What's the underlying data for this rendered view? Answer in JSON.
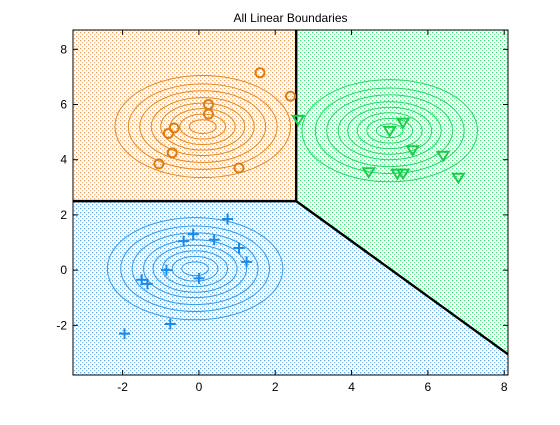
{
  "chart_data": {
    "type": "scatter",
    "title": "All Linear Boundaries",
    "xlabel": "",
    "ylabel": "",
    "xlim": [
      -3.3,
      8.1
    ],
    "ylim": [
      -3.8,
      8.7
    ],
    "xticks": [
      -2,
      0,
      2,
      4,
      6,
      8
    ],
    "yticks": [
      -2,
      0,
      2,
      4,
      6,
      8
    ],
    "grid": false,
    "legend": "none",
    "regions": [
      {
        "class": "orange",
        "color": "#e8a25a",
        "polygon": [
          [
            -3.3,
            2.5
          ],
          [
            2.55,
            2.5
          ],
          [
            2.55,
            8.7
          ],
          [
            -3.3,
            8.7
          ]
        ]
      },
      {
        "class": "green",
        "color": "#3ee07a",
        "polygon": [
          [
            2.55,
            8.7
          ],
          [
            2.55,
            2.5
          ],
          [
            8.1,
            -3.05
          ],
          [
            8.1,
            8.7
          ]
        ]
      },
      {
        "class": "blue",
        "color": "#5aaae8",
        "polygon": [
          [
            -3.3,
            2.5
          ],
          [
            2.55,
            2.5
          ],
          [
            8.1,
            -3.05
          ],
          [
            8.1,
            -3.8
          ],
          [
            -3.3,
            -3.8
          ]
        ]
      }
    ],
    "boundaries": [
      {
        "points": [
          [
            -3.3,
            2.5
          ],
          [
            2.55,
            2.5
          ]
        ]
      },
      {
        "points": [
          [
            2.55,
            2.5
          ],
          [
            2.55,
            8.7
          ]
        ]
      },
      {
        "points": [
          [
            2.55,
            2.5
          ],
          [
            8.1,
            -3.05
          ]
        ]
      }
    ],
    "contours": [
      {
        "class": "orange",
        "color": "#e08a25",
        "center": [
          0.1,
          5.2
        ],
        "rx": [
          0.35,
          0.6,
          0.85,
          1.1,
          1.35,
          1.65,
          1.95,
          2.3
        ],
        "ry": [
          0.25,
          0.45,
          0.65,
          0.85,
          1.05,
          1.3,
          1.55,
          1.85
        ]
      },
      {
        "class": "green",
        "color": "#2ed36a",
        "center": [
          5.0,
          5.05
        ],
        "rx": [
          0.35,
          0.6,
          0.85,
          1.1,
          1.35,
          1.65,
          1.95,
          2.3
        ],
        "ry": [
          0.25,
          0.45,
          0.65,
          0.85,
          1.05,
          1.3,
          1.55,
          1.85
        ]
      },
      {
        "class": "blue",
        "color": "#3a9ae0",
        "center": [
          -0.1,
          0.05
        ],
        "rx": [
          0.35,
          0.6,
          0.85,
          1.1,
          1.35,
          1.65,
          1.95,
          2.3
        ],
        "ry": [
          0.25,
          0.45,
          0.65,
          0.85,
          1.05,
          1.3,
          1.55,
          1.85
        ]
      }
    ],
    "series": [
      {
        "class": "orange",
        "marker": "circle",
        "color": "#e07b10",
        "x": [
          -1.05,
          -0.7,
          -0.65,
          -0.8,
          0.25,
          0.25,
          1.6,
          2.4,
          1.05
        ],
        "y": [
          3.85,
          4.25,
          5.15,
          4.95,
          6.0,
          5.65,
          7.15,
          6.3,
          3.7
        ]
      },
      {
        "class": "green",
        "marker": "triangle-down",
        "color": "#1ecc4a",
        "x": [
          2.6,
          5.0,
          5.35,
          5.6,
          6.4,
          4.45,
          5.2,
          5.35,
          6.8
        ],
        "y": [
          5.45,
          5.05,
          5.35,
          4.35,
          4.15,
          3.55,
          3.5,
          3.5,
          3.35
        ]
      },
      {
        "class": "blue",
        "marker": "plus",
        "color": "#1a8ae8",
        "x": [
          -1.95,
          -0.75,
          -1.5,
          -1.35,
          -0.85,
          0.0,
          0.75,
          1.05,
          1.25,
          -0.4,
          0.4,
          -0.15
        ],
        "y": [
          -2.3,
          -1.95,
          -0.35,
          -0.5,
          0.0,
          -0.3,
          1.85,
          0.8,
          0.3,
          1.05,
          1.1,
          1.3
        ]
      }
    ]
  }
}
